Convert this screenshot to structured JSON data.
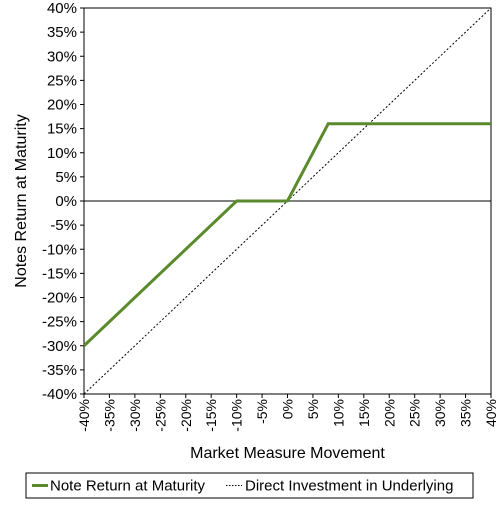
{
  "chart_data": {
    "type": "line",
    "xlabel": "Market Measure Movement",
    "ylabel": "Notes Return at Maturity",
    "xlim": [
      -40,
      40
    ],
    "ylim": [
      -40,
      40
    ],
    "x_ticks": [
      "-40%",
      "-35%",
      "-30%",
      "-25%",
      "-20%",
      "-15%",
      "-10%",
      "-5%",
      "0%",
      "5%",
      "10%",
      "15%",
      "20%",
      "25%",
      "30%",
      "35%",
      "40%"
    ],
    "y_ticks": [
      "40%",
      "35%",
      "30%",
      "25%",
      "20%",
      "15%",
      "10%",
      "5%",
      "0%",
      "-5%",
      "-10%",
      "-15%",
      "-20%",
      "-25%",
      "-30%",
      "-35%",
      "-40%"
    ],
    "grid": false,
    "legend_position": "bottom",
    "series": [
      {
        "name": "Note Return at Maturity",
        "color": "#5a8a2c",
        "style": "solid",
        "x": [
          -40,
          -10,
          0,
          8,
          40
        ],
        "y": [
          -30,
          0,
          0,
          16,
          16
        ]
      },
      {
        "name": "Direct Investment in Underlying",
        "color": "#000000",
        "style": "dotted",
        "x": [
          -40,
          40
        ],
        "y": [
          -40,
          40
        ]
      }
    ]
  }
}
